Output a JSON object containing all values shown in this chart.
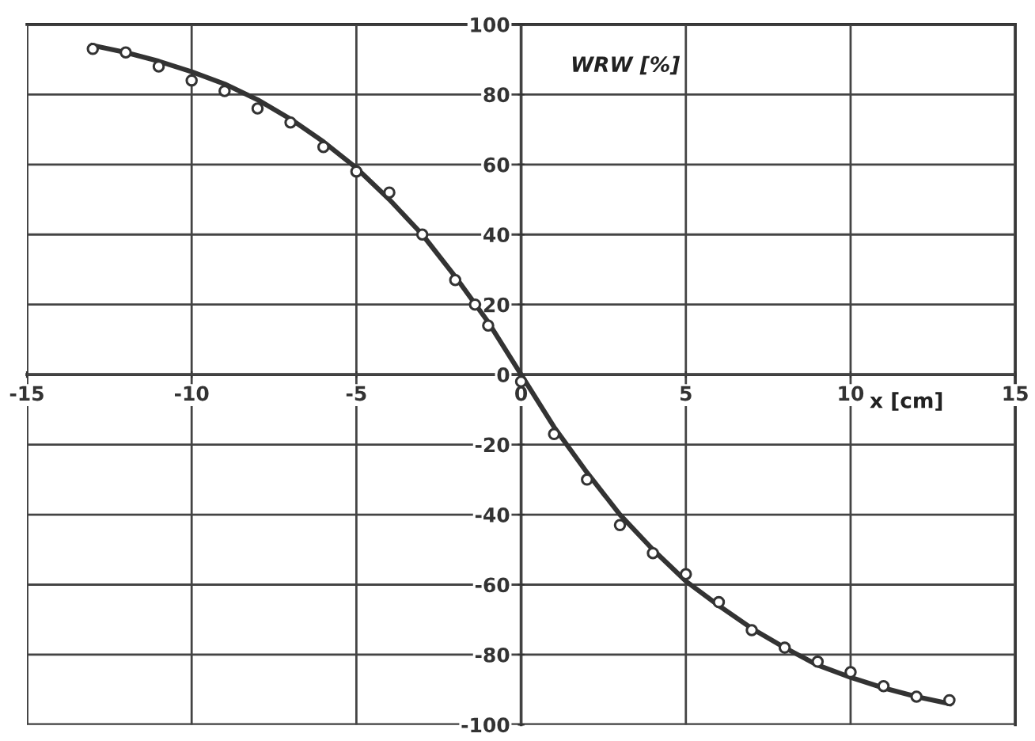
{
  "chart_data": {
    "type": "scatter",
    "xlabel": "x [cm]",
    "ylabel": "WRW [%]",
    "xlim": [
      -15,
      15
    ],
    "ylim": [
      -100,
      100
    ],
    "xticks": [
      -15,
      -10,
      -5,
      0,
      5,
      10,
      15
    ],
    "yticks": [
      -100,
      -80,
      -60,
      -40,
      -20,
      0,
      20,
      40,
      60,
      80,
      100
    ],
    "grid": true,
    "marker": "circle",
    "series": [
      {
        "color": "#333333",
        "x": [
          -13,
          -12,
          -11,
          -10,
          -9,
          -8,
          -7,
          -6,
          -5,
          -4,
          -3,
          -2,
          -1.4,
          -1,
          0,
          1,
          2,
          3,
          4,
          5,
          6,
          7,
          8,
          9,
          10,
          11,
          12,
          13
        ],
        "values": [
          93,
          92,
          88,
          84,
          81,
          76,
          72,
          65,
          58,
          52,
          40,
          27,
          20,
          14,
          -2,
          -17,
          -30,
          -43,
          -51,
          -57,
          -65,
          -73,
          -78,
          -82,
          -85,
          -89,
          -92,
          -93
        ]
      },
      {
        "type": "line",
        "color": "#333333",
        "marker": "none",
        "line_style": "solid",
        "x": [
          -13,
          -12,
          -11,
          -10,
          -9,
          -8,
          -7,
          -6,
          -5,
          -4,
          -3,
          -2,
          -1,
          0,
          1,
          2,
          3,
          4,
          5,
          6,
          7,
          8,
          9,
          10,
          11,
          12,
          13
        ],
        "values": [
          94,
          92,
          89.5,
          86.5,
          83,
          78.5,
          73,
          66.5,
          59,
          50,
          40,
          28,
          15,
          0,
          -15,
          -28,
          -40,
          -50,
          -59,
          -66,
          -72.5,
          -78,
          -83,
          -86.5,
          -89.5,
          -92,
          -94
        ]
      }
    ]
  }
}
